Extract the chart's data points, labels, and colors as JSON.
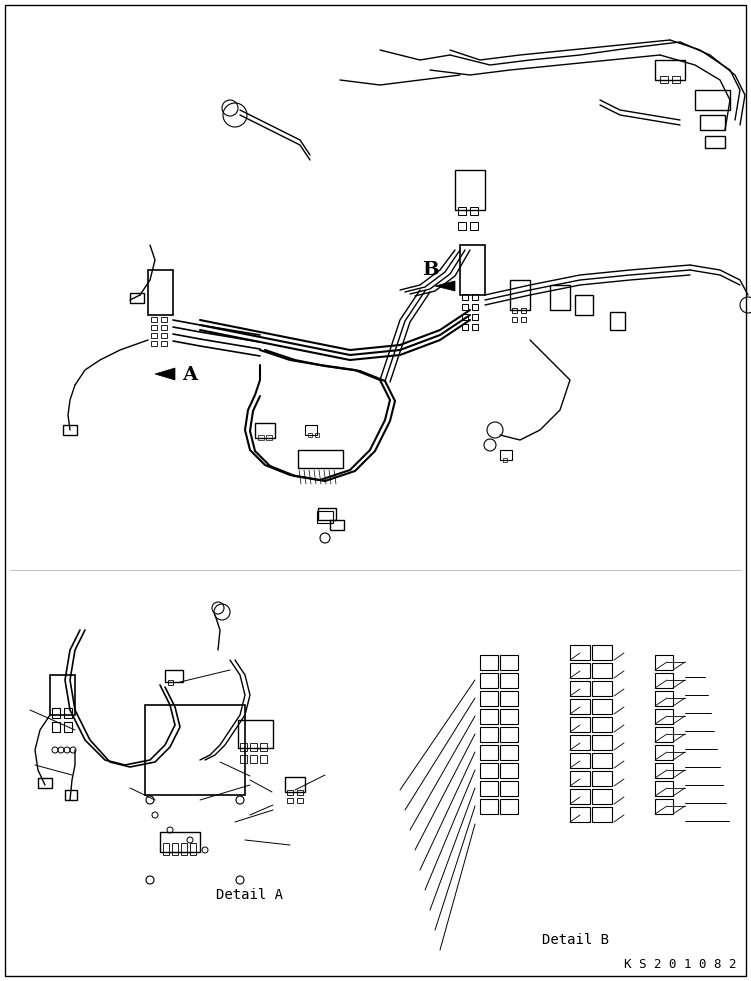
{
  "background_color": "#ffffff",
  "line_color": "#000000",
  "line_width": 0.8,
  "label_A": "A",
  "label_B": "B",
  "label_detail_a": "Detail A",
  "label_detail_b": "Detail B",
  "label_code": "K S 2 0 1 0 8 2",
  "figsize": [
    7.51,
    9.81
  ],
  "dpi": 100
}
